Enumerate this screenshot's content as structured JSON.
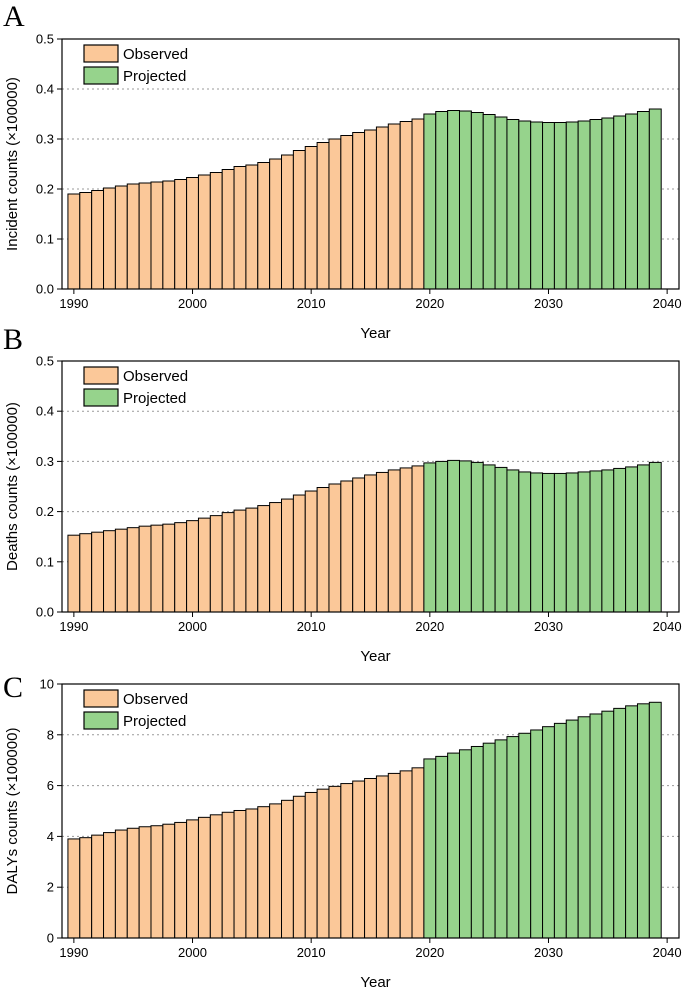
{
  "colors": {
    "observed": "#fbc899",
    "projected": "#96d38c"
  },
  "chart_data": [
    {
      "panel": "A",
      "type": "bar",
      "xlabel": "Year",
      "ylabel": "Incident counts (×100000)",
      "xlim": [
        1989,
        2041
      ],
      "ylim": [
        0,
        0.5
      ],
      "xticks": [
        1990,
        2000,
        2010,
        2020,
        2030,
        2040
      ],
      "yticks": [
        0,
        0.1,
        0.2,
        0.3,
        0.4,
        0.5
      ],
      "ytick_labels": [
        "0.0",
        "0.1",
        "0.2",
        "0.3",
        "0.4",
        "0.5"
      ],
      "grid": true,
      "legend": [
        "Observed",
        "Projected"
      ],
      "legend_position": "top-left",
      "series": [
        {
          "name": "Observed",
          "x": [
            1990,
            1991,
            1992,
            1993,
            1994,
            1995,
            1996,
            1997,
            1998,
            1999,
            2000,
            2001,
            2002,
            2003,
            2004,
            2005,
            2006,
            2007,
            2008,
            2009,
            2010,
            2011,
            2012,
            2013,
            2014,
            2015,
            2016,
            2017,
            2018,
            2019
          ],
          "values": [
            0.19,
            0.193,
            0.197,
            0.202,
            0.206,
            0.21,
            0.212,
            0.214,
            0.216,
            0.219,
            0.223,
            0.228,
            0.233,
            0.239,
            0.245,
            0.248,
            0.253,
            0.26,
            0.268,
            0.277,
            0.285,
            0.293,
            0.3,
            0.307,
            0.313,
            0.318,
            0.324,
            0.33,
            0.335,
            0.34
          ]
        },
        {
          "name": "Projected",
          "x": [
            2020,
            2021,
            2022,
            2023,
            2024,
            2025,
            2026,
            2027,
            2028,
            2029,
            2030,
            2031,
            2032,
            2033,
            2034,
            2035,
            2036,
            2037,
            2038,
            2039
          ],
          "values": [
            0.35,
            0.355,
            0.357,
            0.356,
            0.353,
            0.349,
            0.344,
            0.339,
            0.336,
            0.334,
            0.333,
            0.333,
            0.334,
            0.336,
            0.339,
            0.342,
            0.346,
            0.35,
            0.355,
            0.36
          ]
        }
      ]
    },
    {
      "panel": "B",
      "type": "bar",
      "xlabel": "Year",
      "ylabel": "Deaths counts (×100000)",
      "xlim": [
        1989,
        2041
      ],
      "ylim": [
        0,
        0.5
      ],
      "xticks": [
        1990,
        2000,
        2010,
        2020,
        2030,
        2040
      ],
      "yticks": [
        0,
        0.1,
        0.2,
        0.3,
        0.4,
        0.5
      ],
      "ytick_labels": [
        "0.0",
        "0.1",
        "0.2",
        "0.3",
        "0.4",
        "0.5"
      ],
      "grid": true,
      "legend": [
        "Observed",
        "Projected"
      ],
      "legend_position": "top-left",
      "series": [
        {
          "name": "Observed",
          "x": [
            1990,
            1991,
            1992,
            1993,
            1994,
            1995,
            1996,
            1997,
            1998,
            1999,
            2000,
            2001,
            2002,
            2003,
            2004,
            2005,
            2006,
            2007,
            2008,
            2009,
            2010,
            2011,
            2012,
            2013,
            2014,
            2015,
            2016,
            2017,
            2018,
            2019
          ],
          "values": [
            0.153,
            0.156,
            0.159,
            0.162,
            0.165,
            0.168,
            0.171,
            0.173,
            0.175,
            0.178,
            0.182,
            0.187,
            0.192,
            0.198,
            0.203,
            0.207,
            0.212,
            0.218,
            0.225,
            0.233,
            0.241,
            0.248,
            0.255,
            0.261,
            0.267,
            0.273,
            0.278,
            0.283,
            0.287,
            0.291
          ]
        },
        {
          "name": "Projected",
          "x": [
            2020,
            2021,
            2022,
            2023,
            2024,
            2025,
            2026,
            2027,
            2028,
            2029,
            2030,
            2031,
            2032,
            2033,
            2034,
            2035,
            2036,
            2037,
            2038,
            2039
          ],
          "values": [
            0.297,
            0.3,
            0.302,
            0.301,
            0.298,
            0.293,
            0.288,
            0.283,
            0.279,
            0.277,
            0.276,
            0.276,
            0.277,
            0.279,
            0.281,
            0.283,
            0.286,
            0.289,
            0.293,
            0.298
          ]
        }
      ]
    },
    {
      "panel": "C",
      "type": "bar",
      "xlabel": "Year",
      "ylabel": "DALYs counts (×100000)",
      "xlim": [
        1989,
        2041
      ],
      "ylim": [
        0,
        10
      ],
      "xticks": [
        1990,
        2000,
        2010,
        2020,
        2030,
        2040
      ],
      "yticks": [
        0,
        2,
        4,
        6,
        8,
        10
      ],
      "ytick_labels": [
        "0",
        "2",
        "4",
        "6",
        "8",
        "10"
      ],
      "grid": true,
      "legend": [
        "Observed",
        "Projected"
      ],
      "legend_position": "top-left",
      "series": [
        {
          "name": "Observed",
          "x": [
            1990,
            1991,
            1992,
            1993,
            1994,
            1995,
            1996,
            1997,
            1998,
            1999,
            2000,
            2001,
            2002,
            2003,
            2004,
            2005,
            2006,
            2007,
            2008,
            2009,
            2010,
            2011,
            2012,
            2013,
            2014,
            2015,
            2016,
            2017,
            2018,
            2019
          ],
          "values": [
            3.9,
            3.95,
            4.05,
            4.15,
            4.25,
            4.32,
            4.38,
            4.42,
            4.48,
            4.55,
            4.65,
            4.75,
            4.85,
            4.95,
            5.02,
            5.08,
            5.17,
            5.28,
            5.42,
            5.58,
            5.73,
            5.86,
            5.97,
            6.08,
            6.18,
            6.28,
            6.38,
            6.48,
            6.58,
            6.7
          ]
        },
        {
          "name": "Projected",
          "x": [
            2020,
            2021,
            2022,
            2023,
            2024,
            2025,
            2026,
            2027,
            2028,
            2029,
            2030,
            2031,
            2032,
            2033,
            2034,
            2035,
            2036,
            2037,
            2038,
            2039
          ],
          "values": [
            7.05,
            7.15,
            7.28,
            7.41,
            7.54,
            7.67,
            7.8,
            7.93,
            8.06,
            8.19,
            8.32,
            8.45,
            8.58,
            8.71,
            8.82,
            8.93,
            9.04,
            9.14,
            9.22,
            9.28
          ]
        }
      ]
    }
  ]
}
